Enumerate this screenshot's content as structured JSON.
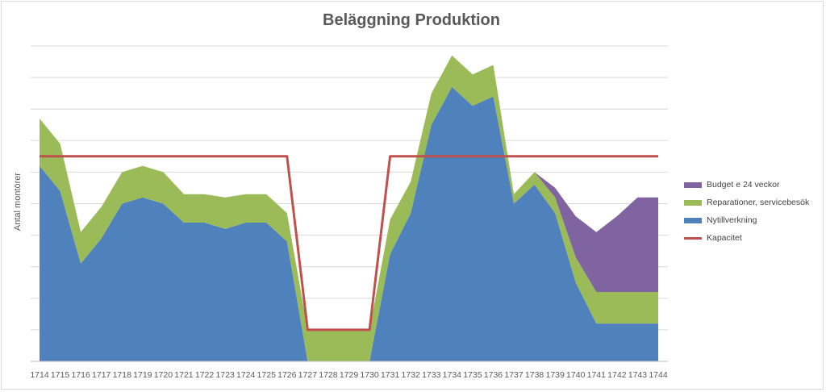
{
  "chart_data": {
    "type": "area",
    "title": "Beläggning Produktion",
    "ylabel": "Antal montörer",
    "xlabel": "",
    "categories": [
      "1714",
      "1715",
      "1716",
      "1717",
      "1718",
      "1719",
      "1720",
      "1721",
      "1722",
      "1723",
      "1724",
      "1725",
      "1726",
      "1727",
      "1728",
      "1729",
      "1730",
      "1731",
      "1732",
      "1733",
      "1734",
      "1735",
      "1736",
      "1737",
      "1738",
      "1739",
      "1740",
      "1741",
      "1742",
      "1743",
      "1744"
    ],
    "ylim": [
      0,
      10
    ],
    "grid": true,
    "stacked": true,
    "legend_position": "right",
    "series": [
      {
        "name": "Nytillverkning",
        "kind": "area",
        "color": "#4f81bd",
        "values": [
          6.2,
          5.4,
          3.1,
          3.9,
          5.0,
          5.2,
          5.0,
          4.4,
          4.4,
          4.2,
          4.4,
          4.4,
          3.8,
          0,
          0,
          0,
          0,
          3.4,
          4.7,
          7.5,
          8.7,
          8.1,
          8.4,
          5.0,
          5.6,
          4.7,
          2.5,
          1.2,
          1.2,
          1.2,
          1.2
        ]
      },
      {
        "name": "Reparationer, servicebesök",
        "kind": "area",
        "color": "#9bbb59",
        "values": [
          1.5,
          1.5,
          1.0,
          1.0,
          1.0,
          1.0,
          1.0,
          0.9,
          0.9,
          1.0,
          0.9,
          0.9,
          0.9,
          1.0,
          1.0,
          1.0,
          1.0,
          1.1,
          1.0,
          1.0,
          1.0,
          1.0,
          1.0,
          0.3,
          0.4,
          0.5,
          0.8,
          1.0,
          1.0,
          1.0,
          1.0
        ]
      },
      {
        "name": "Budget e 24 veckor",
        "kind": "area",
        "color": "#8064a2",
        "values": [
          0,
          0,
          0,
          0,
          0,
          0,
          0,
          0,
          0,
          0,
          0,
          0,
          0,
          0,
          0,
          0,
          0,
          0,
          0,
          0,
          0,
          0,
          0,
          0,
          0,
          0.3,
          1.3,
          1.9,
          2.4,
          3.0,
          3.0
        ]
      },
      {
        "name": "Kapacitet",
        "kind": "line",
        "color": "#c0504d",
        "values": [
          6.5,
          6.5,
          6.5,
          6.5,
          6.5,
          6.5,
          6.5,
          6.5,
          6.5,
          6.5,
          6.5,
          6.5,
          6.5,
          1.0,
          1.0,
          1.0,
          1.0,
          6.5,
          6.5,
          6.5,
          6.5,
          6.5,
          6.5,
          6.5,
          6.5,
          6.5,
          6.5,
          6.5,
          6.5,
          6.5,
          6.5
        ]
      }
    ],
    "legend_order": [
      "Budget e 24 veckor",
      "Reparationer, servicebesök",
      "Nytillverkning",
      "Kapacitet"
    ]
  }
}
